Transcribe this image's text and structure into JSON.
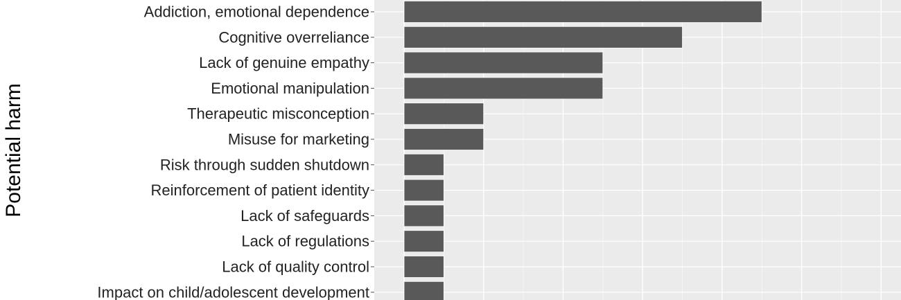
{
  "chart_data": {
    "type": "bar",
    "orientation": "horizontal",
    "ylabel": "Potential harm",
    "categories": [
      "Addiction, emotional dependence",
      "Cognitive overreliance",
      "Lack of genuine empathy",
      "Emotional manipulation",
      "Therapeutic misconception",
      "Misuse for marketing",
      "Risk through sudden shutdown",
      "Reinforcement of patient identity",
      "Lack of safeguards",
      "Lack of regulations",
      "Lack of quality control",
      "Impact on child/adolescent development"
    ],
    "values": [
      9,
      7,
      5,
      5,
      2,
      2,
      1,
      1,
      1,
      1,
      1,
      1
    ],
    "xlim": [
      -0.75,
      12.5
    ],
    "grid": true,
    "colors": {
      "bar": "#595959",
      "panel": "#ebebeb",
      "grid": "#ffffff"
    }
  }
}
